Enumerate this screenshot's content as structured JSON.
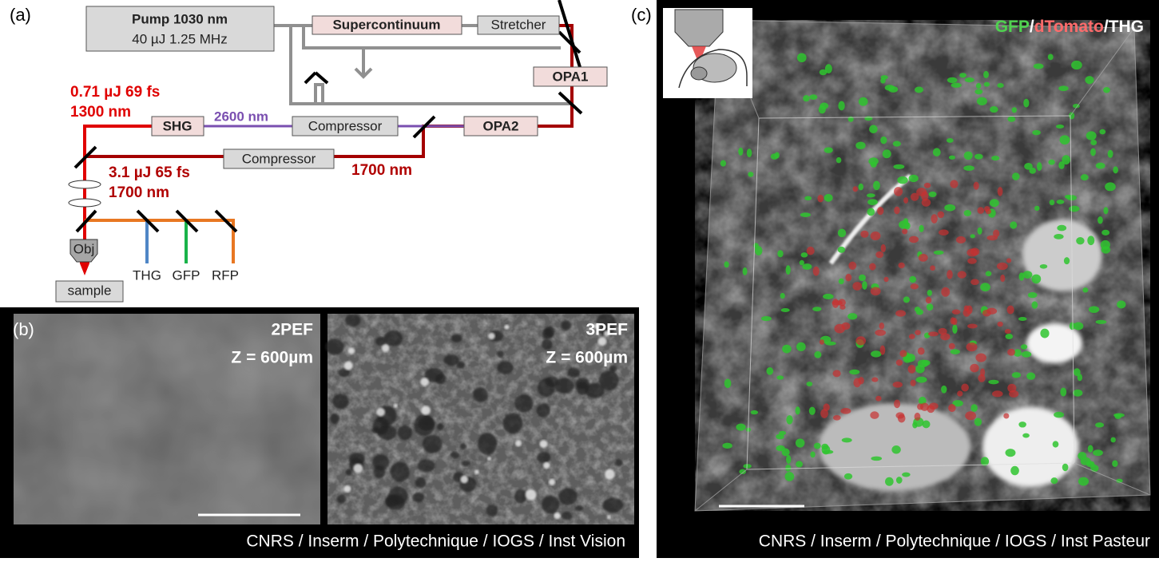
{
  "panel_a": {
    "label": "(a)",
    "pump": {
      "name": "Pump 1030 nm",
      "spec": "40 µJ 1.25 MHz"
    },
    "boxes": [
      "Supercontinuum",
      "Stretcher",
      "OPA1",
      "OPA2",
      "SHG",
      "Compressor",
      "Compressor"
    ],
    "wavelengths": [
      "2600 nm",
      "1700 nm"
    ],
    "output_1300": [
      "0.71 µJ 69 fs",
      "1300 nm"
    ],
    "output_1700": [
      "3.1 µJ 65 fs",
      "1700 nm"
    ],
    "objective": "Obj",
    "sample": "sample",
    "detectors": [
      "THG",
      "GFP",
      "RFP"
    ]
  },
  "panel_b": {
    "label": "(b)",
    "images": [
      {
        "contrast": "2PEF",
        "depth": "Z = 600µm"
      },
      {
        "contrast": "3PEF",
        "depth": "Z = 600µm"
      }
    ],
    "credit": "CNRS / Inserm / Polytechnique / IOGS / Inst Vision"
  },
  "panel_c": {
    "label": "(c)",
    "channels": [
      "GFP",
      "dTomato",
      "THG"
    ],
    "separators": [
      "/",
      "/"
    ],
    "credit": "CNRS / Inserm / Polytechnique / IOGS / Inst Pasteur"
  }
}
